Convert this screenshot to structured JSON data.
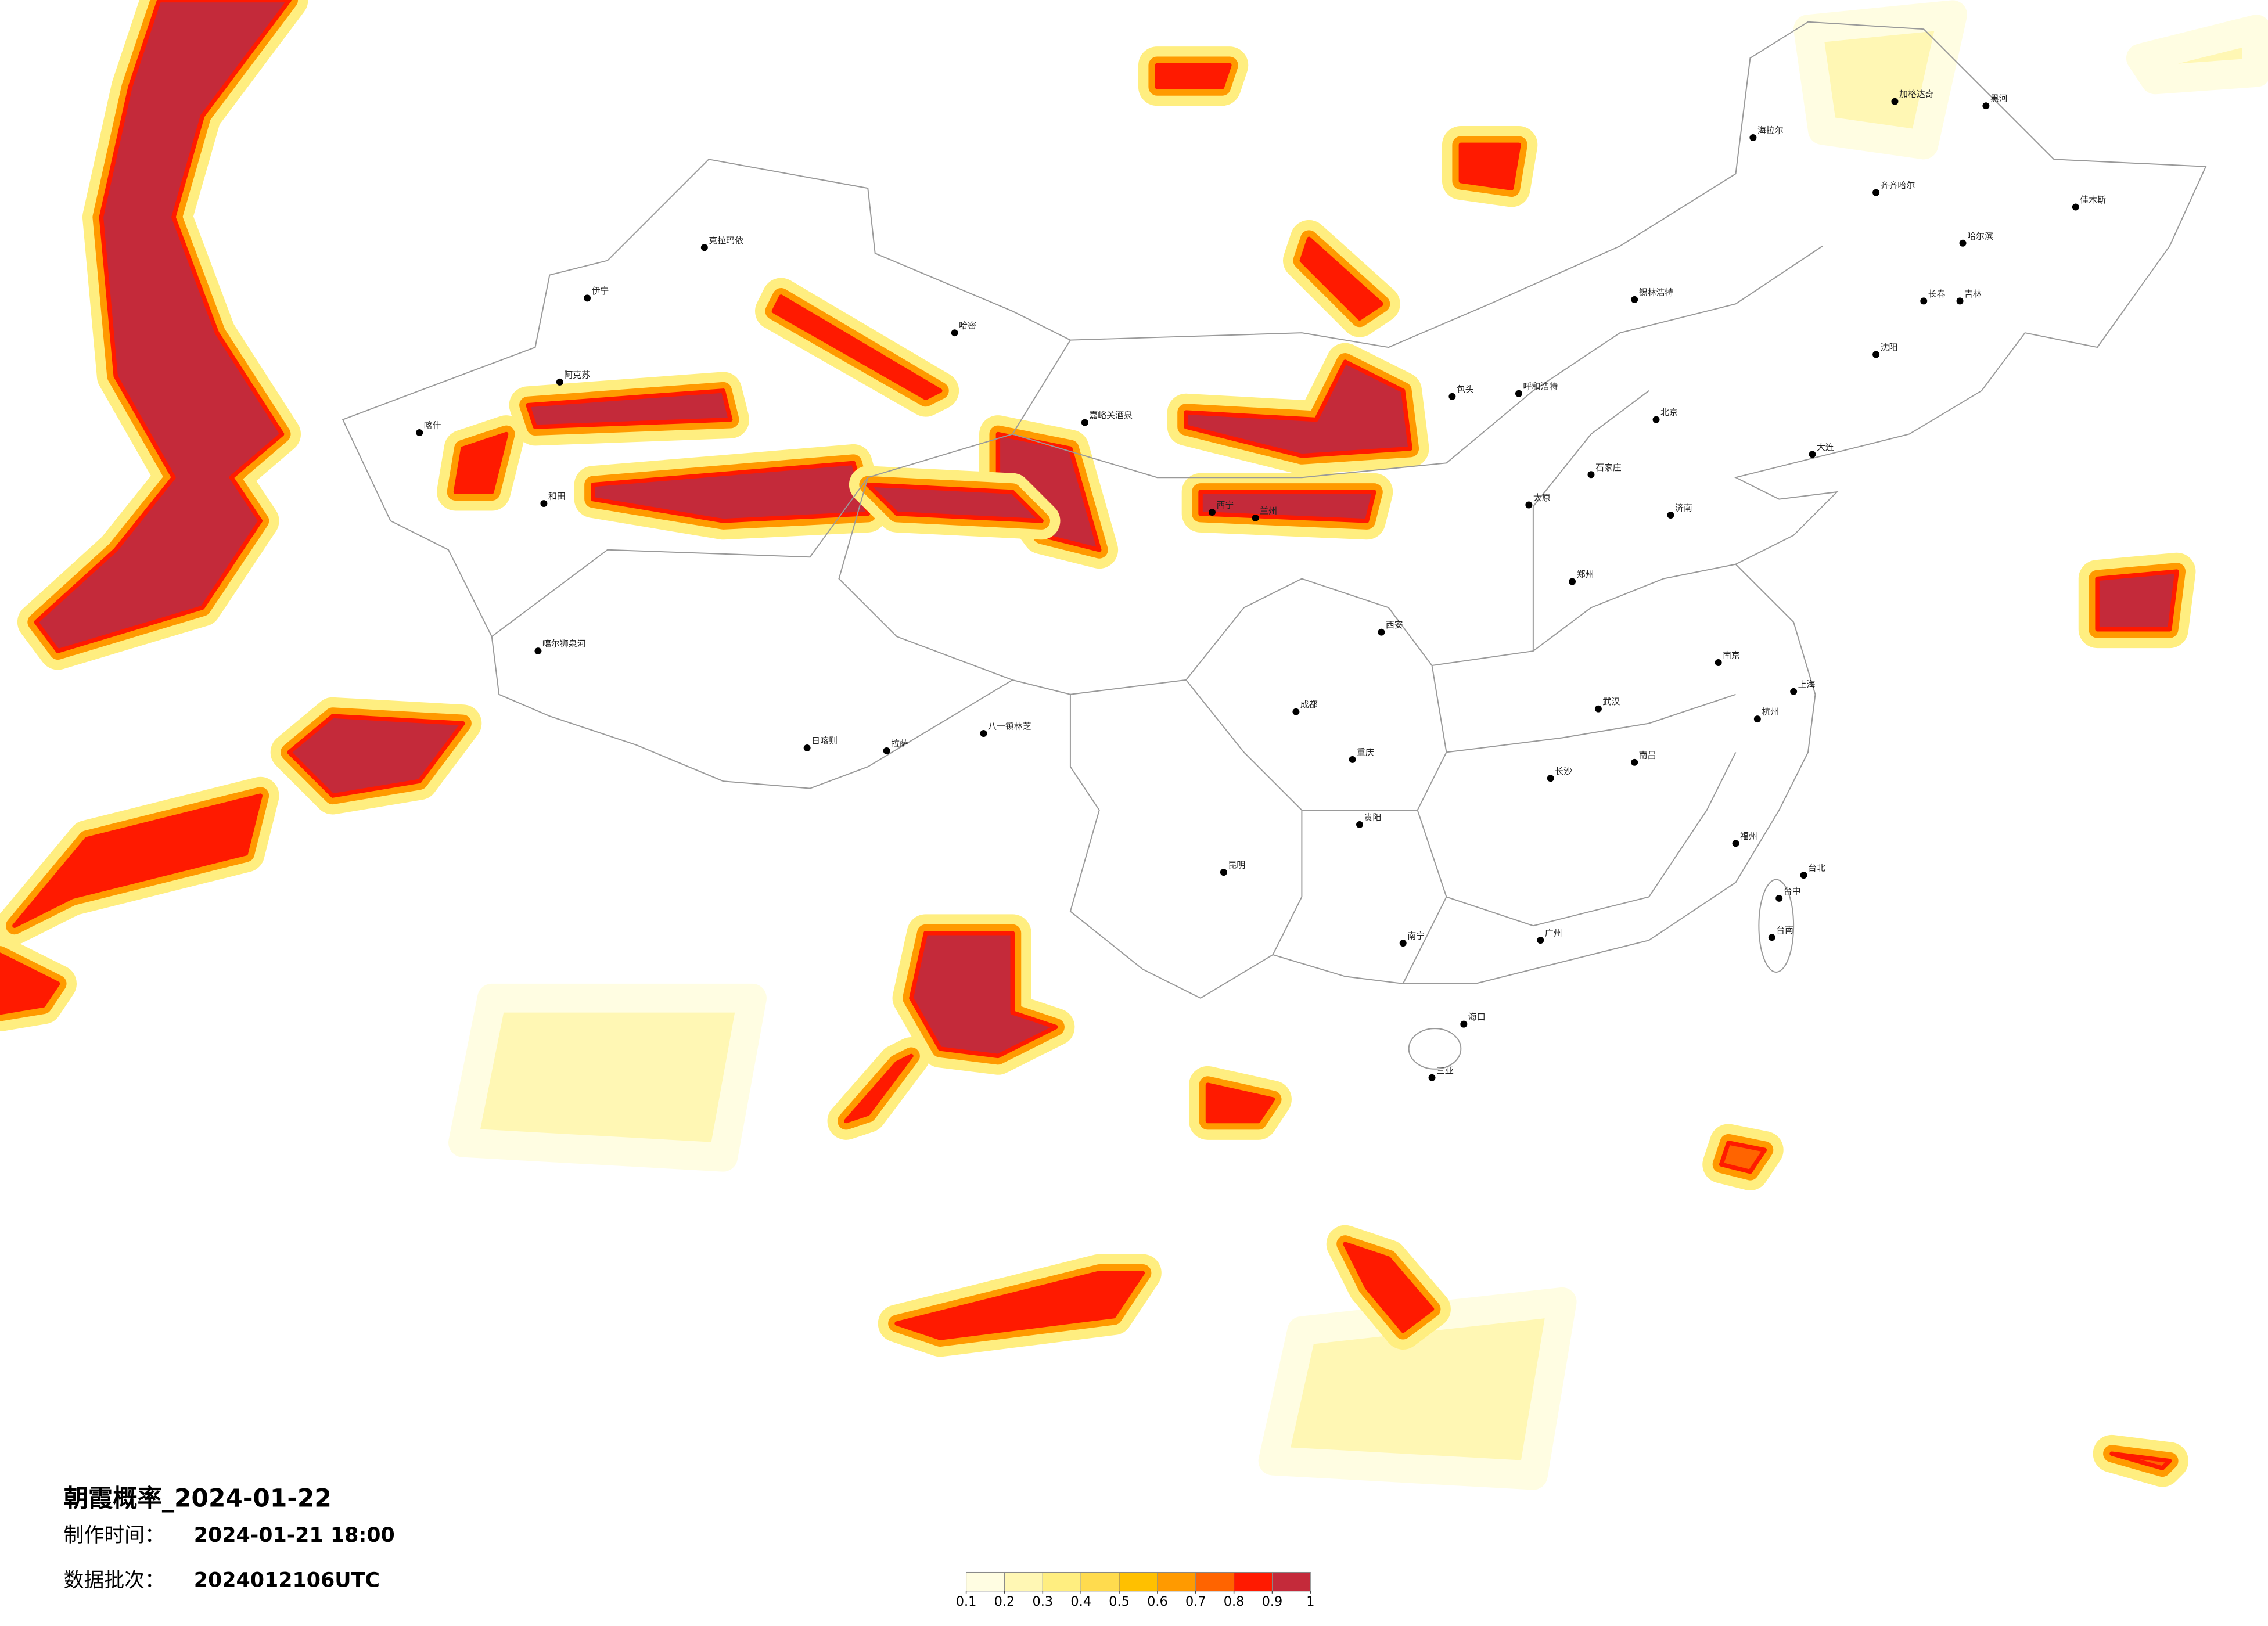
{
  "title": "朝霞概率_2024-01-22",
  "info": [
    {
      "label": "制作时间：",
      "value": "2024-01-21 18:00"
    },
    {
      "label": "数据批次：",
      "value": "2024012106UTC"
    }
  ],
  "colorbar": {
    "ticks": [
      0.1,
      0.2,
      0.3,
      0.4,
      0.5,
      0.6,
      0.7,
      0.8,
      0.9,
      1
    ],
    "colors": [
      "#fffde2",
      "#fff7b4",
      "#ffee80",
      "#ffdb4e",
      "#ffc000",
      "#ff9a00",
      "#ff6400",
      "#ff1a00",
      "#c42a3a"
    ]
  },
  "cities": [
    "克拉玛依",
    "伊宁",
    "阿克苏",
    "喀什",
    "和田",
    "哈密",
    "嘉峪关酒泉",
    "海拉尔",
    "加格达奇",
    "黑河",
    "齐齐哈尔",
    "哈尔滨",
    "佳木斯",
    "长春",
    "吉林",
    "沈阳",
    "大连",
    "呼和浩特",
    "包头",
    "北京",
    "石家庄",
    "太原",
    "济南",
    "郑州",
    "西安",
    "兰州",
    "西宁",
    "拉萨",
    "日喀则",
    "八一镇林芝",
    "成都",
    "重庆",
    "武汉",
    "南京",
    "上海",
    "杭州",
    "长沙",
    "南昌",
    "福州",
    "广州",
    "昆明",
    "贵阳",
    "南宁",
    "海口",
    "台北",
    "台中",
    "台南",
    "三亚",
    "锡林浩特",
    "噶尔狮泉河"
  ]
}
